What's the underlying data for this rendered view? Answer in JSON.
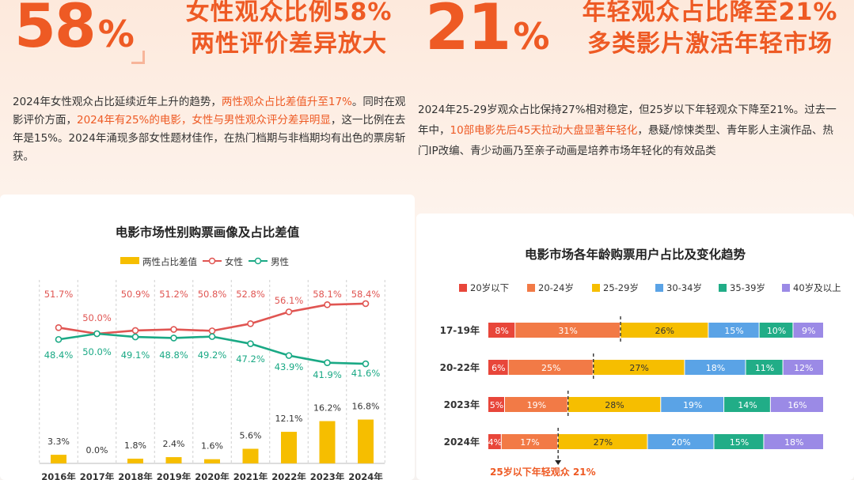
{
  "left_headline": {
    "big_number": "58",
    "big_unit": "%",
    "line1": "女性观众比例58%",
    "line2": "两性评价差异放大"
  },
  "left_paragraph": [
    {
      "text": "2024年女性观众占比延续近年上升的趋势，",
      "highlight": false
    },
    {
      "text": "两性观众占比差值升至17%",
      "highlight": true
    },
    {
      "text": "。同时在观影评价方面，",
      "highlight": false
    },
    {
      "text": "2024年有25%的电影，女性与男性观众评分差异明显",
      "highlight": true
    },
    {
      "text": "，这一比例在去年是15%。2024年涌现多部女性题材佳作，在热门档期与非档期均有出色的票房斩获。",
      "highlight": false
    }
  ],
  "right_headline": {
    "big_number": "21",
    "big_unit": "%",
    "line1": "年轻观众占比降至21%",
    "line2": "多类影片激活年轻市场"
  },
  "right_paragraph": [
    {
      "text": "2024年25-29岁观众占比保持27%相对稳定，但25岁以下年轻观众下降至21%。过去一年中，",
      "highlight": false
    },
    {
      "text": "10部电影先后45天拉动大盘显著年轻化",
      "highlight": true
    },
    {
      "text": "，悬疑/惊悚类型、青年影人主演作品、热门IP改编、青少动画乃至亲子动画是培养市场年轻化的有效品类",
      "highlight": false
    }
  ],
  "colors": {
    "accent": "#ee5a24",
    "female": "#e05552",
    "male": "#1aa985",
    "gap_bar": "#f6be00",
    "age_under20": "#e8463a",
    "age_20_24": "#f27a46",
    "age_25_29": "#f6be00",
    "age_30_34": "#5aa3e6",
    "age_35_39": "#21ad87",
    "age_40plus": "#9b8ae6"
  },
  "chart_data": [
    {
      "type": "line",
      "title": "电影市场性别购票画像及占比差值",
      "categories": [
        "2016年",
        "2017年",
        "2018年",
        "2019年",
        "2020年",
        "2021年",
        "2022年",
        "2023年",
        "2024年"
      ],
      "series": [
        {
          "name": "女性",
          "type": "line",
          "values": [
            51.7,
            50.0,
            50.9,
            51.2,
            50.8,
            52.8,
            56.1,
            58.1,
            58.4
          ],
          "labels": [
            "51.7%",
            "50.0%",
            "50.9%",
            "51.2%",
            "50.8%",
            "52.8%",
            "56.1%",
            "58.1%",
            "58.4%"
          ]
        },
        {
          "name": "男性",
          "type": "line",
          "values": [
            48.4,
            50.0,
            49.1,
            48.8,
            49.2,
            47.2,
            43.9,
            41.9,
            41.6
          ],
          "labels": [
            "48.4%",
            "50.0%",
            "49.1%",
            "48.8%",
            "49.2%",
            "47.2%",
            "43.9%",
            "41.9%",
            "41.6%"
          ]
        },
        {
          "name": "两性占比差值",
          "type": "bar",
          "values": [
            3.3,
            0.0,
            1.8,
            2.4,
            1.6,
            5.6,
            12.1,
            16.2,
            16.8
          ],
          "labels": [
            "3.3%",
            "0.0%",
            "1.8%",
            "2.4%",
            "1.6%",
            "5.6%",
            "12.1%",
            "16.2%",
            "16.8%"
          ]
        }
      ],
      "legend": {
        "position": "top",
        "items": [
          "两性占比差值",
          "女性",
          "男性"
        ]
      },
      "grid": false
    },
    {
      "type": "bar",
      "stacked": true,
      "orientation": "horizontal",
      "title": "电影市场各年龄购票用户占比及变化趋势",
      "categories": [
        "17-19年",
        "20-22年",
        "2023年",
        "2024年"
      ],
      "series": [
        {
          "name": "20岁以下",
          "values": [
            8,
            6,
            5,
            4
          ],
          "labels": [
            "8%",
            "6%",
            "5%",
            "4%"
          ]
        },
        {
          "name": "20-24岁",
          "values": [
            31,
            25,
            19,
            17
          ],
          "labels": [
            "31%",
            "25%",
            "19%",
            "17%"
          ]
        },
        {
          "name": "25-29岁",
          "values": [
            26,
            27,
            28,
            27
          ],
          "labels": [
            "26%",
            "27%",
            "28%",
            "27%"
          ]
        },
        {
          "name": "30-34岁",
          "values": [
            15,
            18,
            19,
            20
          ],
          "labels": [
            "15%",
            "18%",
            "19%",
            "20%"
          ]
        },
        {
          "name": "35-39岁",
          "values": [
            10,
            11,
            14,
            15
          ],
          "labels": [
            "10%",
            "11%",
            "14%",
            "15%"
          ]
        },
        {
          "name": "40岁及以上",
          "values": [
            9,
            12,
            16,
            18
          ],
          "labels": [
            "9%",
            "12%",
            "16%",
            "18%"
          ]
        }
      ],
      "legend": {
        "position": "top"
      },
      "annotation": "25岁以下年轻观众 21%",
      "marker_after_series": "20-24岁"
    }
  ]
}
